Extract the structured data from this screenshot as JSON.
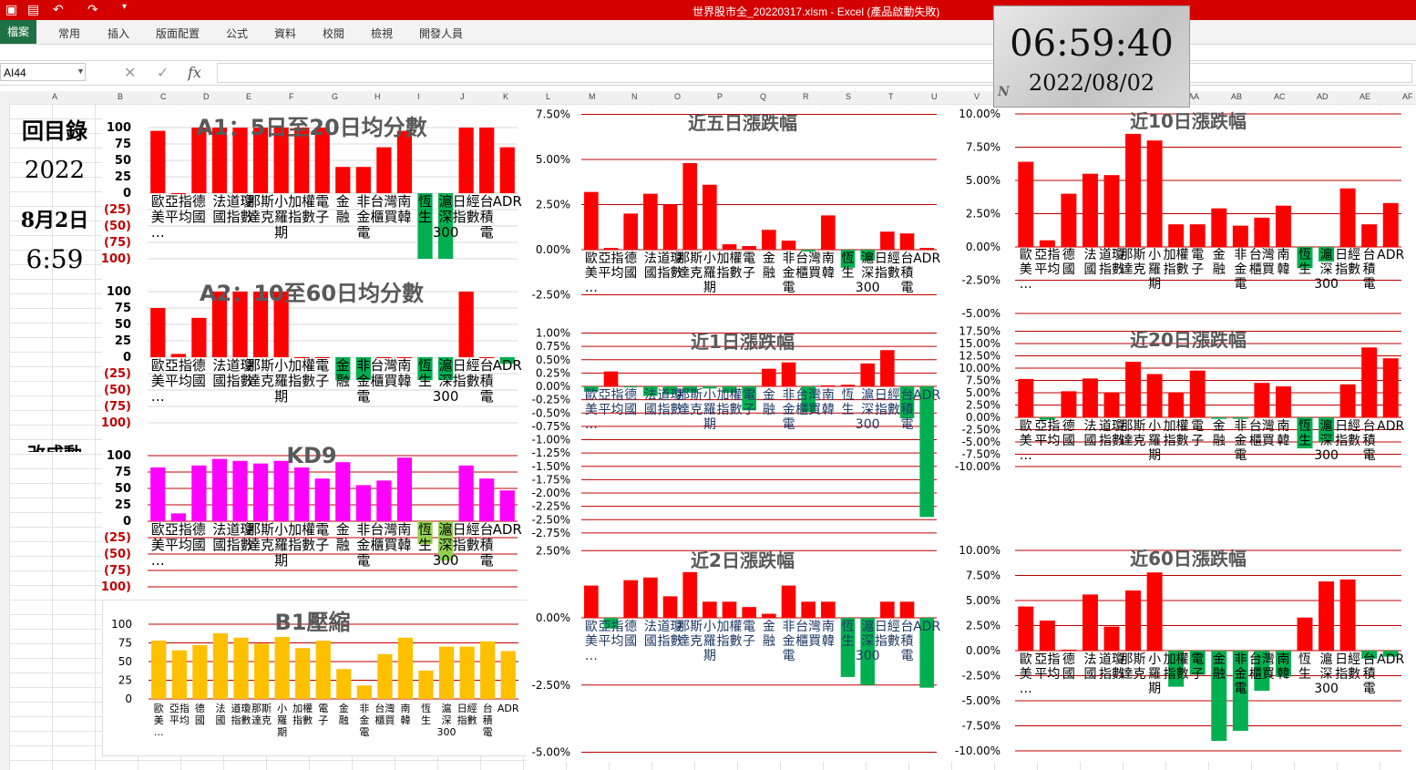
{
  "window": {
    "title": "世界股市全_20220317.xlsm - Excel (產品啟動失敗)"
  },
  "ribbon": {
    "tabs": [
      "檔案",
      "常用",
      "插入",
      "版面配置",
      "公式",
      "資料",
      "校閱",
      "檢視",
      "開發人員"
    ]
  },
  "formula_bar": {
    "name_box": "AI44",
    "fx_label": "fx",
    "formula": ""
  },
  "columns": [
    "A",
    "B",
    "C",
    "D",
    "E",
    "F",
    "G",
    "H",
    "I",
    "J",
    "K",
    "L",
    "M",
    "N",
    "O",
    "P",
    "Q",
    "R",
    "S",
    "T",
    "U",
    "V",
    "W",
    "X",
    "Y",
    "Z",
    "AA",
    "AB",
    "AC",
    "AD",
    "AE",
    "AF"
  ],
  "left_panel": {
    "menu": "回目錄",
    "year": "2022",
    "date": "8月2日",
    "time": "6:59",
    "cut_text": "改成動"
  },
  "clock": {
    "time": "06:59:40",
    "date": "2022/08/02",
    "mark": "N"
  },
  "colors": {
    "up": "#ff0000",
    "down": "#00b050",
    "magenta": "#ff00ff",
    "amber": "#ffc000",
    "light_green": "#92d050",
    "label_blue": "#1f3864",
    "neg_label": "#c00000"
  },
  "chart_data": [
    {
      "type": "bar",
      "title": "A1：5日至20日均分數",
      "categories": [
        "歐美…",
        "亞指平均",
        "德國",
        "法國",
        "道瓊指數",
        "那斯達克",
        "小羅期",
        "加權指數",
        "電子",
        "金融",
        "非金電",
        "台灣櫃買",
        "南韓",
        "恆生",
        "滬深300",
        "日經指數",
        "台積電",
        "ADR"
      ],
      "values": [
        95,
        0,
        100,
        100,
        100,
        100,
        100,
        100,
        100,
        40,
        40,
        70,
        95,
        -100,
        -100,
        100,
        100,
        70
      ],
      "yticks": [
        "100",
        "75",
        "50",
        "25",
        "0",
        "(25)",
        "(50)",
        "(75)",
        "(100)"
      ],
      "ylim": [
        -100,
        100
      ]
    },
    {
      "type": "bar",
      "title": "A2：10至60日均分數",
      "categories": [
        "歐美…",
        "亞指平均",
        "德國",
        "法國",
        "道瓊指數",
        "那斯達克",
        "小羅期",
        "加權指數",
        "電子",
        "金融",
        "非金電",
        "台灣櫃買",
        "南韓",
        "恆生",
        "滬深300",
        "日經指數",
        "台積電",
        "ADR"
      ],
      "values": [
        75,
        5,
        60,
        100,
        100,
        100,
        100,
        0,
        0,
        -35,
        -35,
        0,
        0,
        -35,
        -35,
        100,
        0,
        -10
      ],
      "yticks": [
        "100",
        "75",
        "50",
        "25",
        "0",
        "(25)",
        "(50)",
        "(75)",
        "(100)"
      ],
      "ylim": [
        -100,
        100
      ]
    },
    {
      "type": "bar",
      "title": "KD9",
      "categories": [
        "歐美…",
        "亞指平均",
        "德國",
        "法國",
        "道瓊指數",
        "那斯達克",
        "小羅期",
        "加權指數",
        "電子",
        "金融",
        "非金電",
        "台灣櫃買",
        "南韓",
        "恆生",
        "滬深300",
        "日經指數",
        "台積電",
        "ADR"
      ],
      "values": [
        82,
        12,
        85,
        95,
        92,
        88,
        92,
        82,
        65,
        90,
        55,
        62,
        97,
        -35,
        -60,
        85,
        65,
        47
      ],
      "yticks": [
        "100",
        "75",
        "50",
        "25",
        "0",
        "(25)",
        "(50)",
        "(75)",
        "(100)"
      ],
      "ylim": [
        -100,
        100
      ]
    },
    {
      "type": "bar",
      "title": "B1壓縮",
      "categories": [
        "歐美…",
        "亞指平均",
        "德國",
        "法國",
        "道瓊指數",
        "那斯達克",
        "小羅期",
        "加權指數",
        "電子",
        "金融",
        "非金電",
        "台灣櫃買",
        "南韓",
        "恆生",
        "滬深300",
        "日經指數",
        "台積電",
        "ADR"
      ],
      "values": [
        78,
        65,
        72,
        88,
        82,
        74,
        83,
        68,
        78,
        40,
        18,
        60,
        82,
        38,
        70,
        70,
        77,
        64
      ],
      "yticks": [
        "100",
        "75",
        "50",
        "25",
        "0"
      ],
      "ylim": [
        0,
        100
      ]
    },
    {
      "type": "bar",
      "title": "近五日漲跌幅",
      "categories": [
        "歐美…",
        "亞指平均",
        "德國",
        "法國",
        "道瓊指數",
        "那斯達克",
        "小羅期",
        "加權指數",
        "電子",
        "金融",
        "非金電",
        "台灣櫃買",
        "南韓",
        "恆生",
        "滬深300",
        "日經指數",
        "台積電",
        "ADR"
      ],
      "values": [
        3.2,
        0.1,
        2.0,
        3.1,
        2.5,
        4.8,
        3.6,
        0.3,
        0.2,
        1.1,
        0.5,
        -0.1,
        1.9,
        -1.0,
        -0.6,
        1.0,
        0.9,
        0.1
      ],
      "yticks": [
        "7.50%",
        "5.00%",
        "2.50%",
        "0.00%",
        "-2.50%"
      ],
      "ylim": [
        -2.5,
        7.5
      ]
    },
    {
      "type": "bar",
      "title": "近10日漲跌幅",
      "categories": [
        "歐美…",
        "亞指平均",
        "德國",
        "法國",
        "道瓊指數",
        "那斯達克",
        "小羅期",
        "加權指數",
        "電子",
        "金融",
        "非金電",
        "台灣櫃買",
        "南韓",
        "恆生",
        "滬深300",
        "日經指數",
        "台積電",
        "ADR"
      ],
      "values": [
        6.4,
        0.5,
        4.0,
        5.5,
        5.4,
        8.5,
        8.0,
        1.7,
        1.7,
        2.9,
        1.6,
        2.2,
        3.1,
        -1.6,
        -1.1,
        4.4,
        1.7,
        3.3
      ],
      "yticks": [
        "10.00%",
        "7.50%",
        "5.00%",
        "2.50%",
        "0.00%",
        "-2.50%",
        "-5.00%"
      ],
      "ylim": [
        -5,
        10
      ]
    },
    {
      "type": "bar",
      "title": "近1日漲跌幅",
      "categories": [
        "歐美…",
        "亞指平均",
        "德國",
        "法國",
        "道瓊指數",
        "那斯達克",
        "小羅期",
        "加權指數",
        "電子",
        "金融",
        "非金電",
        "台灣櫃買",
        "南韓",
        "恆生",
        "滬深300",
        "日經指數",
        "台積電",
        "ADR"
      ],
      "values": [
        -0.1,
        0.28,
        -0.02,
        -0.18,
        -0.15,
        -0.12,
        -0.04,
        -0.12,
        -0.45,
        0.33,
        0.45,
        -0.48,
        0.02,
        0.03,
        0.43,
        0.68,
        -0.6,
        -2.45
      ],
      "yticks": [
        "1.00%",
        "0.75%",
        "0.50%",
        "0.25%",
        "0.00%",
        "-0.25%",
        "-0.50%",
        "-0.75%",
        "-1.00%",
        "-1.25%",
        "-1.50%",
        "-1.75%",
        "-2.00%",
        "-2.25%",
        "-2.50%",
        "-2.75%"
      ],
      "ylim": [
        -2.75,
        1.0
      ]
    },
    {
      "type": "bar",
      "title": "近20日漲跌幅",
      "categories": [
        "歐美…",
        "亞指平均",
        "德國",
        "法國",
        "道瓊指數",
        "那斯達克",
        "小羅期",
        "加權指數",
        "電子",
        "金融",
        "非金電",
        "台灣櫃買",
        "南韓",
        "恆生",
        "滬深300",
        "日經指數",
        "台積電",
        "ADR"
      ],
      "values": [
        7.8,
        -0.5,
        5.3,
        7.9,
        5.1,
        11.3,
        8.8,
        5.1,
        9.5,
        -0.3,
        -0.3,
        7.0,
        6.3,
        -6.3,
        -5.0,
        6.7,
        14.2,
        12.0
      ],
      "yticks": [
        "17.50%",
        "15.00%",
        "12.50%",
        "10.00%",
        "7.50%",
        "5.00%",
        "2.50%",
        "0.00%",
        "-2.50%",
        "-5.00%",
        "-7.50%",
        "-10.00%"
      ],
      "ylim": [
        -10,
        17.5
      ]
    },
    {
      "type": "bar",
      "title": "近2日漲跌幅",
      "categories": [
        "歐美…",
        "亞指平均",
        "德國",
        "法國",
        "道瓊指數",
        "那斯達克",
        "小羅期",
        "加權指數",
        "電子",
        "金融",
        "非金電",
        "台灣櫃買",
        "南韓",
        "恆生",
        "滬深300",
        "日經指數",
        "台積電",
        "ADR"
      ],
      "values": [
        1.2,
        -0.4,
        1.4,
        1.5,
        0.8,
        1.7,
        0.6,
        0.6,
        0.4,
        0.15,
        1.2,
        0.6,
        0.6,
        -2.2,
        -2.5,
        0.6,
        0.6,
        -2.6
      ],
      "yticks": [
        "2.50%",
        "0.00%",
        "-2.50%",
        "-5.00%"
      ],
      "ylim": [
        -5,
        2.5
      ]
    },
    {
      "type": "bar",
      "title": "近60日漲跌幅",
      "categories": [
        "歐美…",
        "亞指平均",
        "德國",
        "法國",
        "道瓊指數",
        "那斯達克",
        "小羅期",
        "加權指數",
        "電子",
        "金融",
        "非金電",
        "台灣櫃買",
        "南韓",
        "恆生",
        "滬深300",
        "日經指數",
        "台積電",
        "ADR"
      ],
      "values": [
        4.4,
        3.0,
        0.1,
        5.6,
        2.4,
        6.0,
        7.8,
        -3.6,
        -2.4,
        -9.0,
        -8.0,
        -4.0,
        -2.6,
        3.3,
        6.9,
        7.1,
        -0.8,
        -0.6
      ],
      "yticks": [
        "10.00%",
        "7.50%",
        "5.00%",
        "2.50%",
        "0.00%",
        "-2.50%",
        "-5.00%",
        "-7.50%",
        "-10.00%"
      ],
      "ylim": [
        -10,
        10
      ]
    }
  ]
}
